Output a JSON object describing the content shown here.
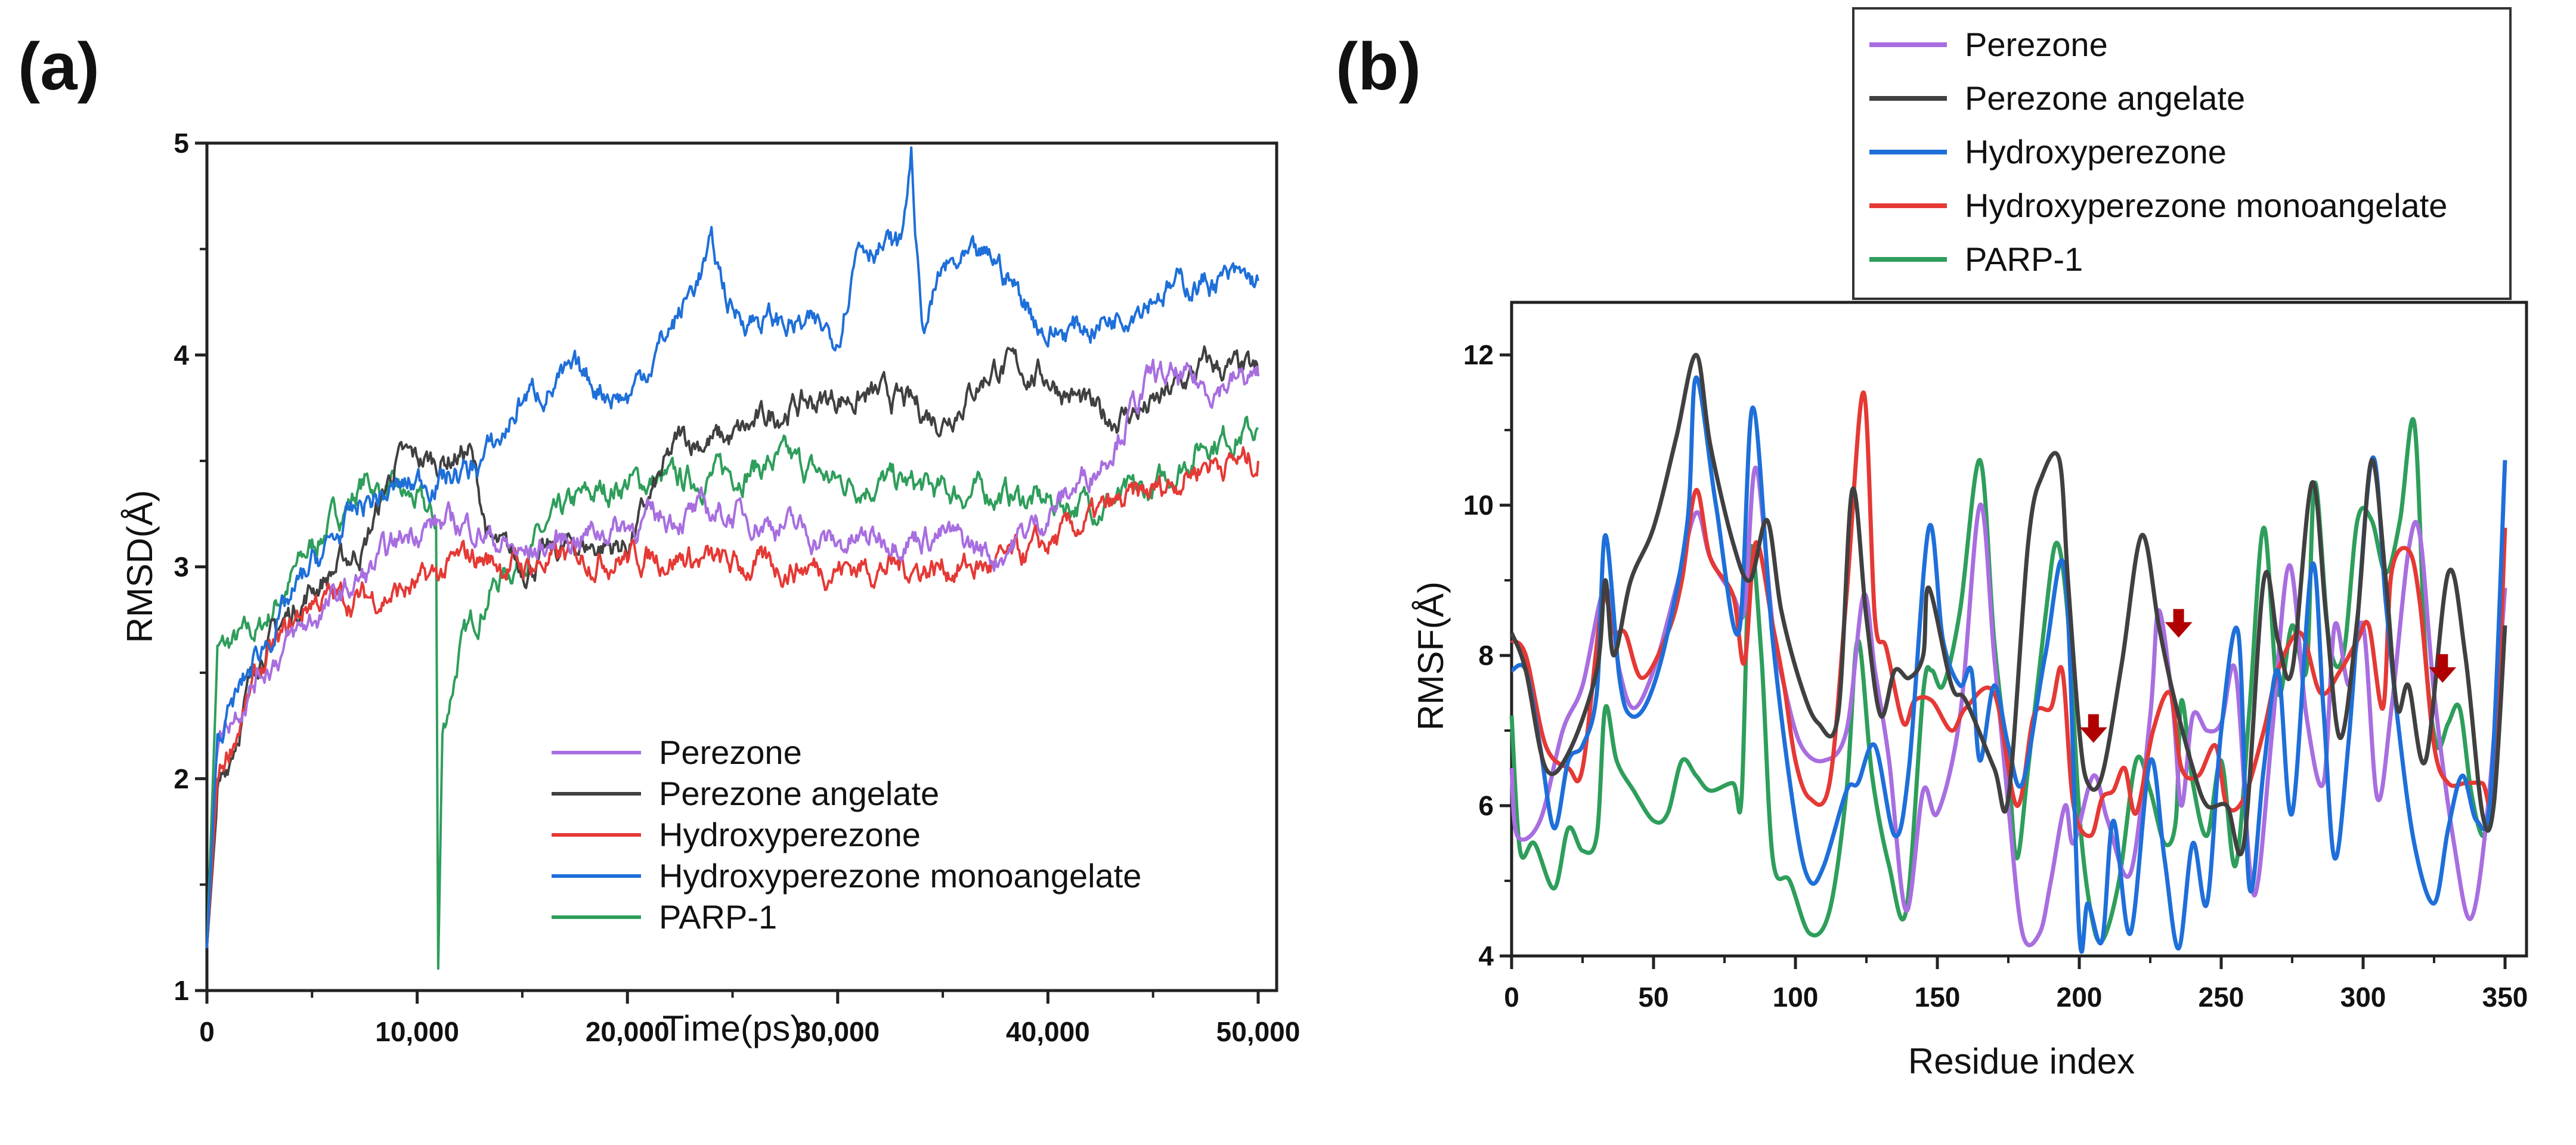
{
  "chart_data": [
    {
      "panel_label": "(a)",
      "type": "line",
      "xlabel": "Time(ps)",
      "ylabel": "RMSD(Å)",
      "xlim": [
        0,
        50000
      ],
      "ylim": [
        1,
        5
      ],
      "xticks": [
        0,
        10000,
        20000,
        30000,
        40000,
        50000
      ],
      "xtick_labels": [
        "0",
        "10,000",
        "20,000",
        "30,000",
        "40,000",
        "50,000"
      ],
      "yticks": [
        1,
        2,
        3,
        4,
        5
      ],
      "ytick_labels": [
        "1",
        "2",
        "3",
        "4",
        "5"
      ],
      "grid": false,
      "legend_position": "bottom-right",
      "series": [
        {
          "name": "Perezone",
          "color": "#a86ee0",
          "x": [
            0,
            500,
            2500,
            5000,
            7500,
            10000,
            12500,
            15000,
            17500,
            20000,
            22500,
            25000,
            27500,
            30000,
            32500,
            35000,
            37500,
            40000,
            42500,
            45000,
            47500,
            50000
          ],
          "y": [
            1.2,
            2.2,
            2.5,
            2.75,
            2.95,
            3.2,
            3.2,
            3.05,
            3.15,
            3.2,
            3.25,
            3.25,
            3.2,
            3.1,
            3.15,
            3.15,
            3.05,
            3.25,
            3.5,
            3.9,
            3.85,
            3.9
          ]
        },
        {
          "name": "Perezone angelate",
          "color": "#404040",
          "x": [
            0,
            500,
            2500,
            5000,
            7500,
            9000,
            11000,
            12500,
            13500,
            15000,
            17500,
            20000,
            22500,
            25000,
            27500,
            30000,
            32500,
            35000,
            37500,
            40000,
            42500,
            45000,
            47500,
            50000
          ],
          "y": [
            1.2,
            1.9,
            2.6,
            2.9,
            3.1,
            3.5,
            3.5,
            3.55,
            3.1,
            3.0,
            3.1,
            3.1,
            3.6,
            3.6,
            3.75,
            3.8,
            3.8,
            3.7,
            3.95,
            3.9,
            3.7,
            3.75,
            3.95,
            3.9
          ]
        },
        {
          "name": "Hydroxyperezone",
          "color": "#e53935",
          "x": [
            0,
            500,
            2500,
            5000,
            7500,
            10000,
            12500,
            15000,
            17500,
            20000,
            22500,
            25000,
            27500,
            30000,
            32500,
            35000,
            37500,
            40000,
            42500,
            45000,
            47500,
            50000
          ],
          "y": [
            1.2,
            2.0,
            2.5,
            2.85,
            2.85,
            2.9,
            3.05,
            3.0,
            3.05,
            3.05,
            3.05,
            3.0,
            3.0,
            3.0,
            3.0,
            3.0,
            3.0,
            3.1,
            3.25,
            3.35,
            3.5,
            3.5
          ]
        },
        {
          "name": "Hydroxyperezone monoangelate",
          "color": "#1e6fd9",
          "x": [
            0,
            500,
            2500,
            5000,
            7500,
            10000,
            12500,
            14000,
            15000,
            17500,
            20000,
            22500,
            24000,
            25000,
            27500,
            30000,
            31000,
            33000,
            33500,
            34000,
            35000,
            37500,
            40000,
            42500,
            45000,
            47500,
            50000
          ],
          "y": [
            1.2,
            2.2,
            2.6,
            3.0,
            3.3,
            3.4,
            3.45,
            3.6,
            3.8,
            3.9,
            3.8,
            4.2,
            4.5,
            4.2,
            4.15,
            4.1,
            4.55,
            4.5,
            4.95,
            4.1,
            4.4,
            4.45,
            4.1,
            4.15,
            4.3,
            4.35,
            4.35
          ]
        },
        {
          "name": "PARP-1",
          "color": "#2e9e5b",
          "x": [
            0,
            500,
            2500,
            5000,
            7500,
            10000,
            10900,
            11000,
            11200,
            12000,
            13500,
            15000,
            17500,
            20000,
            22500,
            25000,
            27500,
            30000,
            32500,
            35000,
            37500,
            40000,
            42500,
            45000,
            47500,
            50000
          ],
          "y": [
            1.2,
            2.6,
            2.7,
            3.1,
            3.4,
            3.3,
            3.2,
            1.1,
            2.2,
            2.6,
            2.9,
            3.05,
            3.3,
            3.4,
            3.4,
            3.45,
            3.5,
            3.4,
            3.4,
            3.35,
            3.35,
            3.3,
            3.3,
            3.35,
            3.6,
            3.65
          ]
        }
      ]
    },
    {
      "panel_label": "(b)",
      "type": "line",
      "xlabel": "Residue index",
      "ylabel": "RMSF(Å)",
      "xlim": [
        0,
        350
      ],
      "ylim": [
        4,
        12.7
      ],
      "xticks": [
        0,
        50,
        100,
        150,
        200,
        250,
        300,
        350
      ],
      "xtick_labels": [
        "0",
        "50",
        "100",
        "150",
        "200",
        "250",
        "300",
        "350"
      ],
      "yticks": [
        4,
        6,
        8,
        10,
        12
      ],
      "ytick_labels": [
        "4",
        "6",
        "8",
        "10",
        "12"
      ],
      "grid": false,
      "legend_position": "top-right",
      "annotations": [
        {
          "type": "arrow-down",
          "color": "#b00000",
          "x": 205,
          "y": 6.9
        },
        {
          "type": "arrow-down",
          "color": "#b00000",
          "x": 235,
          "y": 8.3
        },
        {
          "type": "arrow-down",
          "color": "#b00000",
          "x": 328,
          "y": 7.7
        }
      ],
      "series": [
        {
          "name": "Perezone",
          "color": "#a86ee0",
          "x": [
            0,
            2,
            10,
            18,
            25,
            33,
            38,
            43,
            50,
            58,
            65,
            70,
            78,
            82,
            86,
            92,
            96,
            102,
            110,
            118,
            124,
            128,
            133,
            139,
            145,
            150,
            158,
            165,
            170,
            175,
            180,
            186,
            190,
            195,
            198,
            205,
            210,
            218,
            225,
            228,
            233,
            236,
            240,
            245,
            250,
            255,
            260,
            263,
            268,
            274,
            280,
            286,
            290,
            295,
            300,
            305,
            310,
            316,
            320,
            325,
            332,
            338,
            344,
            350
          ],
          "y": [
            6.5,
            5.6,
            5.8,
            7.0,
            7.6,
            8.9,
            7.8,
            7.3,
            7.8,
            8.9,
            9.9,
            9.3,
            8.8,
            8.6,
            10.5,
            8.4,
            7.6,
            6.8,
            6.6,
            7.0,
            8.8,
            7.8,
            6.6,
            4.6,
            6.2,
            5.9,
            7.2,
            10.0,
            8.0,
            6.0,
            4.3,
            4.3,
            5.0,
            6.0,
            5.5,
            6.4,
            5.8,
            5.1,
            7.2,
            8.6,
            7.3,
            6.0,
            7.2,
            7.0,
            7.1,
            7.8,
            5.2,
            5.0,
            7.0,
            9.2,
            7.2,
            6.3,
            8.4,
            7.6,
            8.4,
            6.1,
            7.3,
            9.4,
            9.6,
            7.5,
            5.5,
            4.5,
            6.0,
            8.9
          ]
        },
        {
          "name": "Perezone angelate",
          "color": "#404040",
          "x": [
            0,
            5,
            12,
            20,
            30,
            33,
            36,
            42,
            50,
            58,
            65,
            70,
            78,
            84,
            90,
            95,
            102,
            108,
            115,
            120,
            125,
            130,
            135,
            140,
            145,
            147,
            155,
            160,
            170,
            175,
            182,
            187,
            193,
            196,
            200,
            203,
            208,
            215,
            222,
            228,
            233,
            240,
            245,
            252,
            258,
            265,
            270,
            275,
            282,
            287,
            292,
            298,
            303,
            308,
            312,
            316,
            322,
            330,
            336,
            342,
            346,
            350
          ],
          "y": [
            8.3,
            7.8,
            6.5,
            6.7,
            7.8,
            9.0,
            8.0,
            9.0,
            9.7,
            10.9,
            12.0,
            10.8,
            9.5,
            9.0,
            9.8,
            8.6,
            7.6,
            7.1,
            7.2,
            10.2,
            8.5,
            7.2,
            7.8,
            7.7,
            8.0,
            8.9,
            7.6,
            7.4,
            6.5,
            6.1,
            9.5,
            10.4,
            10.6,
            9.0,
            7.0,
            6.3,
            6.4,
            7.9,
            9.6,
            8.4,
            7.5,
            6.5,
            6.0,
            6.0,
            5.5,
            9.0,
            8.2,
            7.8,
            10.3,
            8.5,
            6.9,
            8.5,
            10.6,
            9.0,
            7.3,
            7.6,
            6.6,
            9.1,
            8.0,
            5.9,
            6.0,
            8.4
          ]
        },
        {
          "name": "Hydroxyperezone",
          "color": "#1e6fd9",
          "x": [
            0,
            5,
            10,
            15,
            20,
            25,
            30,
            33,
            38,
            42,
            48,
            55,
            62,
            65,
            72,
            80,
            85,
            92,
            100,
            105,
            110,
            118,
            122,
            128,
            135,
            140,
            147,
            152,
            158,
            162,
            165,
            170,
            175,
            180,
            188,
            195,
            200,
            203,
            208,
            212,
            218,
            225,
            230,
            235,
            240,
            245,
            250,
            256,
            260,
            265,
            270,
            275,
            282,
            286,
            290,
            295,
            303,
            308,
            312,
            318,
            325,
            330,
            335,
            340,
            345,
            350
          ],
          "y": [
            7.8,
            7.8,
            6.8,
            5.7,
            6.6,
            6.8,
            7.5,
            9.6,
            7.7,
            7.2,
            7.4,
            8.3,
            9.8,
            11.7,
            10.0,
            8.3,
            11.3,
            8.2,
            5.8,
            5.0,
            5.2,
            6.2,
            6.3,
            6.8,
            5.6,
            6.5,
            9.7,
            8.2,
            7.6,
            7.8,
            6.6,
            7.6,
            6.8,
            6.3,
            8.0,
            9.1,
            4.3,
            4.7,
            4.2,
            5.8,
            4.3,
            6.6,
            5.3,
            4.1,
            5.5,
            4.7,
            7.0,
            8.3,
            4.9,
            6.5,
            7.8,
            5.9,
            9.2,
            7.3,
            5.3,
            6.9,
            10.6,
            8.7,
            7.2,
            5.5,
            4.7,
            5.7,
            6.4,
            5.8,
            6.2,
            10.6
          ]
        },
        {
          "name": "Hydroxyperezone monoangelate",
          "color": "#e53935",
          "x": [
            0,
            5,
            12,
            20,
            25,
            32,
            36,
            40,
            46,
            55,
            60,
            65,
            70,
            78,
            82,
            86,
            92,
            96,
            100,
            105,
            112,
            118,
            124,
            128,
            132,
            138,
            142,
            148,
            155,
            160,
            170,
            178,
            184,
            190,
            194,
            198,
            204,
            208,
            212,
            216,
            220,
            226,
            232,
            236,
            242,
            248,
            252,
            258,
            265,
            270,
            278,
            285,
            292,
            298,
            302,
            307,
            310,
            316,
            320,
            325,
            330,
            336,
            342,
            346,
            350
          ],
          "y": [
            8.2,
            8.0,
            6.8,
            6.5,
            6.5,
            8.7,
            8.3,
            8.3,
            7.7,
            8.3,
            9.0,
            10.2,
            9.3,
            8.8,
            7.9,
            9.5,
            8.4,
            7.6,
            6.6,
            6.1,
            6.3,
            8.8,
            11.5,
            8.5,
            8.1,
            7.1,
            7.4,
            7.4,
            7.0,
            7.3,
            7.5,
            6.0,
            7.2,
            7.3,
            7.8,
            6.0,
            5.6,
            6.1,
            6.2,
            6.5,
            5.9,
            7.0,
            7.5,
            6.5,
            6.4,
            6.8,
            6.0,
            6.1,
            7.0,
            7.8,
            8.3,
            7.5,
            7.8,
            8.2,
            8.4,
            7.3,
            9.1,
            9.4,
            8.7,
            6.8,
            6.3,
            6.3,
            6.3,
            6.2,
            9.7
          ]
        },
        {
          "name": "PARP-1",
          "color": "#2e9e5b",
          "x": [
            0,
            3,
            8,
            15,
            20,
            25,
            30,
            33,
            37,
            43,
            50,
            55,
            60,
            65,
            70,
            78,
            81,
            84,
            88,
            92,
            98,
            105,
            112,
            118,
            122,
            127,
            133,
            139,
            145,
            148,
            152,
            158,
            165,
            170,
            175,
            178,
            182,
            188,
            192,
            196,
            200,
            204,
            208,
            214,
            220,
            225,
            230,
            234,
            236,
            240,
            245,
            250,
            255,
            260,
            265,
            270,
            275,
            280,
            283,
            288,
            293,
            298,
            303,
            308,
            313,
            318,
            322,
            326,
            330,
            334,
            338,
            342,
            345
          ],
          "y": [
            7.2,
            5.4,
            5.5,
            4.9,
            5.7,
            5.4,
            5.6,
            7.3,
            6.6,
            6.2,
            5.8,
            5.9,
            6.6,
            6.4,
            6.2,
            6.3,
            6.1,
            9.4,
            8.0,
            5.3,
            5.0,
            4.3,
            4.6,
            6.2,
            8.2,
            6.4,
            5.2,
            4.6,
            7.5,
            7.8,
            7.6,
            8.6,
            10.6,
            8.2,
            6.5,
            5.3,
            6.5,
            8.5,
            9.5,
            8.5,
            5.9,
            4.6,
            4.2,
            5.0,
            6.6,
            6.2,
            5.5,
            5.8,
            7.4,
            6.3,
            5.6,
            6.6,
            5.2,
            7.3,
            9.7,
            7.5,
            8.4,
            7.8,
            10.3,
            8.2,
            8.0,
            9.8,
            9.8,
            9.1,
            9.8,
            11.1,
            8.0,
            6.8,
            7.1,
            7.3,
            6.2,
            5.6,
            6.0
          ]
        }
      ]
    }
  ]
}
